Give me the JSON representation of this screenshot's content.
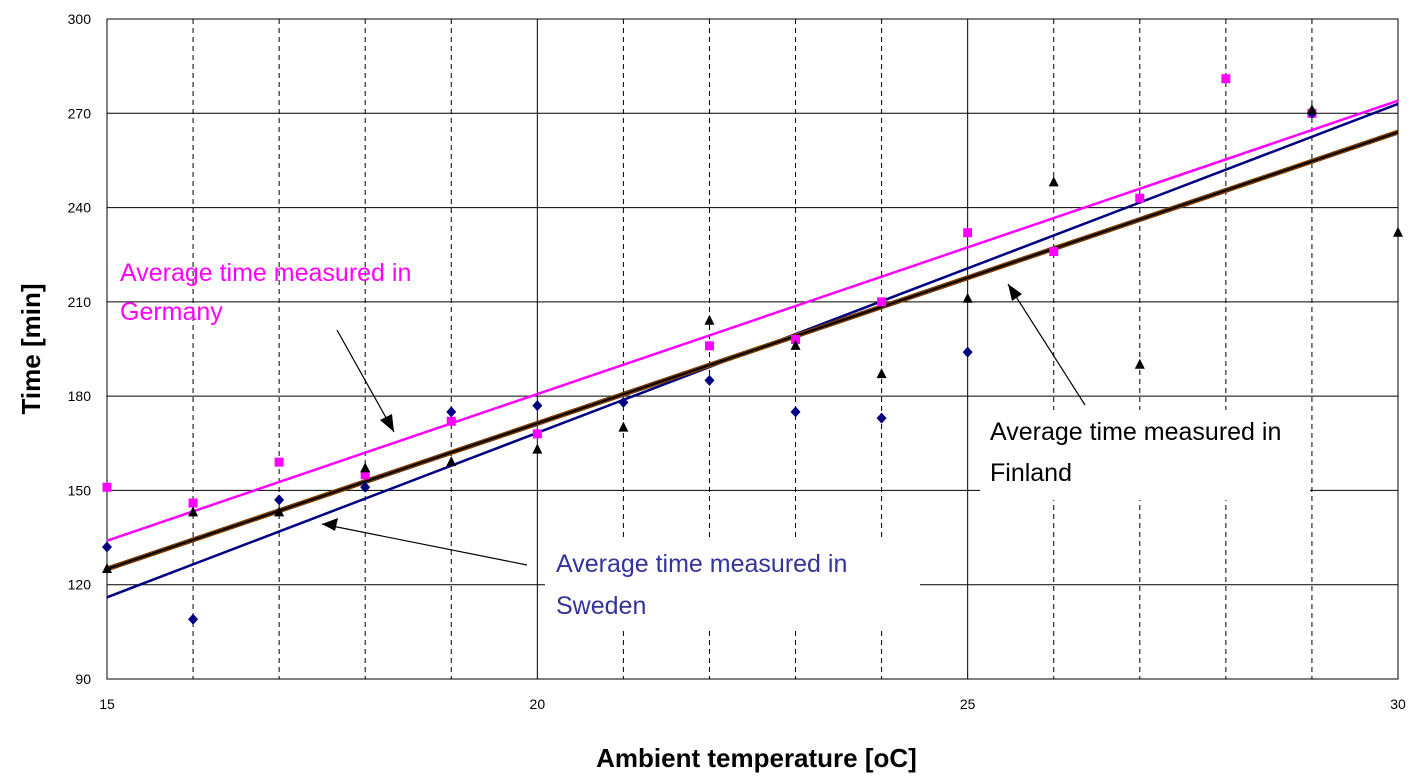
{
  "chart_data": {
    "type": "scatter",
    "title": "",
    "xlabel": "Ambient temperature [oC]",
    "ylabel": "Time [min]",
    "xlim": [
      15,
      30
    ],
    "ylim": [
      90,
      300
    ],
    "x_major_ticks": [
      15,
      20,
      25,
      30
    ],
    "y_ticks": [
      90,
      120,
      150,
      180,
      210,
      240,
      270,
      300
    ],
    "x_tick_labels": [
      "15",
      "20",
      "25",
      "30"
    ],
    "y_tick_labels": [
      "90",
      "120",
      "150",
      "180",
      "210",
      "240",
      "270",
      "300"
    ],
    "grid": "major solid, minor vertical dashed",
    "legend": "none",
    "series": [
      {
        "key": "germany",
        "color": "#ff00ff",
        "marker": "square",
        "points": [
          [
            15,
            151
          ],
          [
            16,
            146
          ],
          [
            17,
            159
          ],
          [
            18,
            155
          ],
          [
            19,
            172
          ],
          [
            20,
            168
          ],
          [
            22,
            196
          ],
          [
            23,
            198
          ],
          [
            24,
            210
          ],
          [
            25,
            232
          ],
          [
            26,
            226
          ],
          [
            27,
            243
          ],
          [
            28,
            281
          ],
          [
            29,
            270
          ]
        ],
        "trend": [
          [
            15,
            134
          ],
          [
            30,
            274
          ]
        ]
      },
      {
        "key": "sweden",
        "color": "#000080",
        "marker": "diamond",
        "points": [
          [
            15,
            132
          ],
          [
            16,
            109
          ],
          [
            17,
            147
          ],
          [
            18,
            151
          ],
          [
            19,
            175
          ],
          [
            20,
            177
          ],
          [
            21,
            178
          ],
          [
            22,
            185
          ],
          [
            23,
            175
          ],
          [
            24,
            173
          ],
          [
            25,
            194
          ],
          [
            29,
            270
          ]
        ],
        "trend": [
          [
            15,
            116
          ],
          [
            30,
            273
          ]
        ]
      },
      {
        "key": "finland",
        "color": "#000000",
        "marker": "triangle",
        "points": [
          [
            15,
            125
          ],
          [
            16,
            143
          ],
          [
            17,
            143
          ],
          [
            18,
            157
          ],
          [
            19,
            159
          ],
          [
            20,
            163
          ],
          [
            21,
            170
          ],
          [
            22,
            204
          ],
          [
            23,
            196
          ],
          [
            24,
            187
          ],
          [
            25,
            211
          ],
          [
            26,
            248
          ],
          [
            27,
            190
          ],
          [
            29,
            271
          ],
          [
            30,
            232
          ]
        ],
        "trend": [
          [
            15,
            125
          ],
          [
            30,
            264
          ]
        ]
      }
    ],
    "annotations": [
      {
        "key": "germany",
        "lines": [
          "Average time measured in",
          "Germany"
        ],
        "color": "#ff00ff"
      },
      {
        "key": "finland",
        "lines": [
          "Average time measured in",
          "Finland"
        ],
        "color": "#000000"
      },
      {
        "key": "sweden",
        "lines": [
          "Average time measured in",
          "Sweden"
        ],
        "color": "#333399"
      }
    ]
  }
}
